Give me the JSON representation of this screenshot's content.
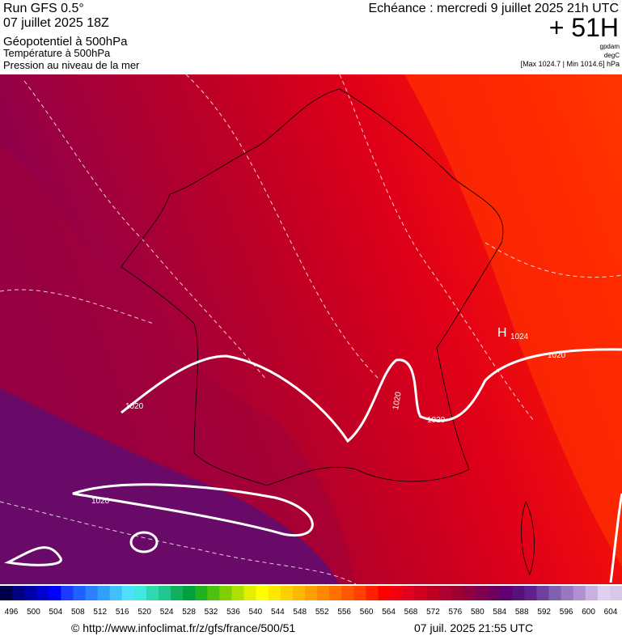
{
  "header": {
    "run": "Run GFS 0.5°",
    "date": "07 juillet 2025 18Z",
    "fields": [
      "Géopotentiel à 500hPa",
      "Température à 500hPa",
      "Pression au niveau de la mer"
    ],
    "echeance": "Echéance : mercredi 9 juillet 2025 21h UTC",
    "lead": "+ 51H",
    "units": [
      "gpdam",
      "degC"
    ],
    "range": "[Max 1024.7 | Min 1014.6] hPa"
  },
  "map_labels": {
    "high": "H",
    "high_value": "1024",
    "isobars": [
      "1020",
      "1020",
      "1020",
      "1020",
      "1020"
    ]
  },
  "legend": {
    "labels": [
      "496",
      "500",
      "504",
      "508",
      "512",
      "516",
      "520",
      "524",
      "528",
      "532",
      "536",
      "540",
      "544",
      "548",
      "552",
      "556",
      "560",
      "564",
      "568",
      "572",
      "576",
      "580",
      "584",
      "588",
      "592",
      "596",
      "600",
      "604"
    ],
    "colors": [
      "#00004a",
      "#000080",
      "#0000a8",
      "#0000d0",
      "#0000ff",
      "#1a3cff",
      "#2060ff",
      "#2a80ff",
      "#30a0ff",
      "#40c0ff",
      "#50e0ff",
      "#40e8e0",
      "#30d8b0",
      "#20c890",
      "#10b060",
      "#00a040",
      "#20b020",
      "#50c010",
      "#80d000",
      "#b0e000",
      "#e0f000",
      "#ffff00",
      "#ffe800",
      "#ffd000",
      "#ffb800",
      "#ffa000",
      "#ff8800",
      "#ff7000",
      "#ff5800",
      "#ff4000",
      "#ff2000",
      "#ff0000",
      "#f00010",
      "#e00020",
      "#d00020",
      "#c00020",
      "#b00030",
      "#a00030",
      "#900040",
      "#800050",
      "#700060",
      "#600070",
      "#58107a",
      "#602090",
      "#7040a0",
      "#8060b0",
      "#9878c0",
      "#b090d0",
      "#c8b0e0",
      "#e0d0f0",
      "#d8c8e8"
    ]
  },
  "footer": {
    "url": "© http://www.infoclimat.fr/z/gfs/france/500/51",
    "time": "07 juil. 2025 21:55 UTC"
  }
}
